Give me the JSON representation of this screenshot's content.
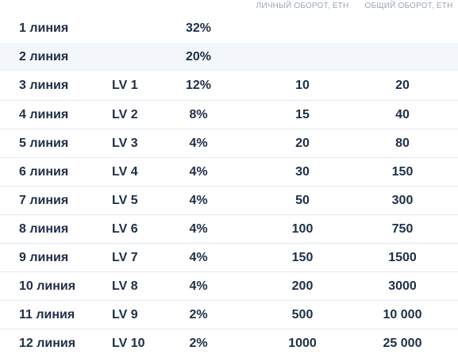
{
  "header": {
    "personal_turnover": "ЛИЧНЫЙ ОБОРОТ, ETH",
    "total_turnover": "ОБЩИЙ ОБОРОТ, ETH"
  },
  "rows": [
    {
      "line": "1 линия",
      "lv": "",
      "percent": "32%",
      "personal": "",
      "total": ""
    },
    {
      "line": "2 линия",
      "lv": "",
      "percent": "20%",
      "personal": "",
      "total": ""
    },
    {
      "line": "3 линия",
      "lv": "LV 1",
      "percent": "12%",
      "personal": "10",
      "total": "20"
    },
    {
      "line": "4 линия",
      "lv": "LV 2",
      "percent": "8%",
      "personal": "15",
      "total": "40"
    },
    {
      "line": "5 линия",
      "lv": "LV 3",
      "percent": "4%",
      "personal": "20",
      "total": "80"
    },
    {
      "line": "6 линия",
      "lv": "LV 4",
      "percent": "4%",
      "personal": "30",
      "total": "150"
    },
    {
      "line": "7 линия",
      "lv": "LV 5",
      "percent": "4%",
      "personal": "50",
      "total": "300"
    },
    {
      "line": "8 линия",
      "lv": "LV 6",
      "percent": "4%",
      "personal": "100",
      "total": "750"
    },
    {
      "line": "9 линия",
      "lv": "LV 7",
      "percent": "4%",
      "personal": "150",
      "total": "1500"
    },
    {
      "line": "10 линия",
      "lv": "LV 8",
      "percent": "4%",
      "personal": "200",
      "total": "3000"
    },
    {
      "line": "11 линия",
      "lv": "LV 9",
      "percent": "2%",
      "personal": "500",
      "total": "10 000"
    },
    {
      "line": "12 линия",
      "lv": "LV 10",
      "percent": "2%",
      "personal": "1000",
      "total": "25 000"
    }
  ]
}
